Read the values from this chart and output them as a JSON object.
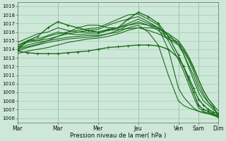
{
  "bg_color": "#cde8d8",
  "grid_color": "#98c4a8",
  "line_color": "#1a6b1a",
  "ylim": [
    1005.5,
    1019.5
  ],
  "yticks": [
    1006,
    1007,
    1008,
    1009,
    1010,
    1011,
    1012,
    1013,
    1014,
    1015,
    1016,
    1017,
    1018,
    1019
  ],
  "xlabel": "Pression niveau de la mer( hPa )",
  "xlim": [
    0,
    240
  ],
  "xtick_positions": [
    0,
    48,
    96,
    144,
    192,
    216,
    240
  ],
  "xtick_labels": [
    "Mar",
    "Mar",
    "Mer",
    "Jeu",
    "Ven",
    "Sam",
    "Dim"
  ],
  "vlines": [
    48,
    96,
    144,
    192,
    216
  ],
  "lines": [
    {
      "x": [
        0,
        12,
        24,
        36,
        48,
        60,
        72,
        84,
        96,
        108,
        120,
        132,
        144,
        156,
        168,
        180,
        192,
        198,
        204,
        210,
        216,
        222,
        228,
        234,
        240
      ],
      "y": [
        1014.0,
        1015.0,
        1015.5,
        1016.5,
        1017.2,
        1016.8,
        1016.5,
        1016.2,
        1016.0,
        1016.3,
        1016.5,
        1017.5,
        1018.3,
        1017.8,
        1017.0,
        1015.5,
        1013.3,
        1012.0,
        1010.5,
        1009.0,
        1007.5,
        1007.0,
        1006.8,
        1006.5,
        1006.2
      ],
      "marker": "+",
      "lw": 1.0
    },
    {
      "x": [
        0,
        12,
        24,
        36,
        48,
        60,
        72,
        84,
        96,
        108,
        120,
        132,
        144,
        156,
        168,
        180,
        192,
        198,
        204,
        210,
        216,
        222,
        228,
        234,
        240
      ],
      "y": [
        1014.2,
        1014.8,
        1015.0,
        1015.5,
        1015.8,
        1016.0,
        1016.2,
        1016.4,
        1016.5,
        1017.0,
        1017.5,
        1018.0,
        1018.1,
        1017.5,
        1016.8,
        1015.0,
        1012.8,
        1011.5,
        1010.0,
        1008.5,
        1007.2,
        1006.8,
        1006.5,
        1006.3,
        1006.1
      ],
      "marker": null,
      "lw": 0.8
    },
    {
      "x": [
        0,
        12,
        24,
        36,
        48,
        60,
        72,
        84,
        96,
        108,
        120,
        132,
        144,
        156,
        168,
        180,
        192,
        198,
        204,
        210,
        216,
        222,
        228,
        234,
        240
      ],
      "y": [
        1014.1,
        1014.5,
        1014.8,
        1015.0,
        1015.5,
        1015.8,
        1016.0,
        1016.2,
        1016.3,
        1016.8,
        1017.2,
        1017.5,
        1017.8,
        1017.2,
        1016.5,
        1014.0,
        1009.5,
        1008.5,
        1007.8,
        1007.2,
        1006.8,
        1006.6,
        1006.5,
        1006.4,
        1006.3
      ],
      "marker": null,
      "lw": 0.8
    },
    {
      "x": [
        0,
        12,
        24,
        36,
        48,
        60,
        72,
        84,
        96,
        108,
        120,
        132,
        144,
        156,
        168,
        180,
        192,
        198,
        204,
        210,
        216,
        222,
        228,
        234,
        240
      ],
      "y": [
        1014.3,
        1015.0,
        1015.2,
        1015.6,
        1016.0,
        1015.8,
        1015.7,
        1015.8,
        1015.8,
        1016.2,
        1016.5,
        1017.0,
        1017.5,
        1017.0,
        1016.5,
        1015.5,
        1014.8,
        1013.5,
        1012.0,
        1010.5,
        1009.0,
        1008.0,
        1007.5,
        1007.0,
        1006.5
      ],
      "marker": null,
      "lw": 0.8
    },
    {
      "x": [
        0,
        12,
        24,
        36,
        48,
        60,
        72,
        84,
        96,
        108,
        120,
        132,
        144,
        156,
        168,
        180,
        192,
        198,
        204,
        210,
        216,
        222,
        228,
        234,
        240
      ],
      "y": [
        1013.8,
        1014.2,
        1014.5,
        1014.8,
        1015.0,
        1015.2,
        1015.3,
        1015.4,
        1015.5,
        1015.8,
        1016.2,
        1016.8,
        1017.2,
        1016.8,
        1016.2,
        1015.2,
        1014.5,
        1013.8,
        1012.8,
        1011.5,
        1010.0,
        1008.8,
        1007.8,
        1007.2,
        1006.4
      ],
      "marker": null,
      "lw": 0.8
    },
    {
      "x": [
        0,
        12,
        24,
        36,
        48,
        60,
        72,
        84,
        96,
        108,
        120,
        132,
        144,
        156,
        168,
        180,
        192,
        198,
        204,
        210,
        216,
        222,
        228,
        234,
        240
      ],
      "y": [
        1014.0,
        1014.3,
        1014.6,
        1015.0,
        1015.2,
        1015.4,
        1015.5,
        1015.6,
        1015.6,
        1015.8,
        1016.0,
        1016.5,
        1016.8,
        1016.0,
        1014.5,
        1011.0,
        1008.0,
        1007.5,
        1007.2,
        1007.0,
        1006.8,
        1006.7,
        1006.6,
        1006.5,
        1006.0
      ],
      "marker": null,
      "lw": 0.8
    },
    {
      "x": [
        0,
        12,
        24,
        36,
        48,
        60,
        72,
        84,
        96,
        108,
        120,
        132,
        144,
        156,
        168,
        180,
        192,
        198,
        204,
        210,
        216,
        222,
        228,
        234,
        240
      ],
      "y": [
        1013.5,
        1013.8,
        1014.0,
        1014.2,
        1014.5,
        1014.8,
        1015.0,
        1015.2,
        1015.3,
        1015.5,
        1015.8,
        1016.2,
        1016.5,
        1016.2,
        1015.8,
        1015.2,
        1014.8,
        1014.0,
        1013.0,
        1011.8,
        1010.5,
        1009.2,
        1008.2,
        1007.5,
        1006.8
      ],
      "marker": null,
      "lw": 0.8
    },
    {
      "x": [
        0,
        12,
        24,
        36,
        48,
        60,
        72,
        84,
        96,
        108,
        120,
        132,
        144,
        156,
        168,
        180,
        192,
        198,
        204,
        210,
        216,
        222,
        228,
        234,
        240
      ],
      "y": [
        1014.5,
        1015.0,
        1015.0,
        1015.2,
        1015.5,
        1016.0,
        1016.5,
        1016.8,
        1016.8,
        1016.5,
        1016.5,
        1016.8,
        1017.0,
        1016.8,
        1016.5,
        1015.8,
        1014.5,
        1013.5,
        1012.2,
        1011.0,
        1009.5,
        1008.5,
        1007.8,
        1007.2,
        1006.2
      ],
      "marker": null,
      "lw": 0.8
    },
    {
      "x": [
        0,
        12,
        24,
        36,
        48,
        60,
        72,
        84,
        96,
        108,
        120,
        132,
        144,
        156,
        168,
        180,
        192,
        198,
        204,
        210,
        216,
        222,
        228,
        234,
        240
      ],
      "y": [
        1014.8,
        1015.3,
        1015.8,
        1016.0,
        1016.5,
        1016.2,
        1016.0,
        1016.0,
        1016.0,
        1016.2,
        1016.3,
        1016.4,
        1016.5,
        1016.5,
        1016.4,
        1015.8,
        1015.0,
        1014.2,
        1013.2,
        1012.0,
        1010.5,
        1009.2,
        1008.2,
        1007.4,
        1006.0
      ],
      "marker": null,
      "lw": 0.8
    },
    {
      "x": [
        0,
        12,
        24,
        36,
        48,
        60,
        72,
        84,
        96,
        108,
        120,
        132,
        144,
        156,
        168,
        180,
        192,
        198,
        204,
        210,
        216,
        222,
        228,
        234,
        240
      ],
      "y": [
        1013.8,
        1013.6,
        1013.5,
        1013.5,
        1013.5,
        1013.6,
        1013.7,
        1013.8,
        1014.0,
        1014.2,
        1014.3,
        1014.4,
        1014.5,
        1014.5,
        1014.4,
        1014.0,
        1013.0,
        1012.0,
        1010.8,
        1009.5,
        1008.2,
        1007.5,
        1007.0,
        1006.7,
        1006.5
      ],
      "marker": "+",
      "lw": 1.0
    }
  ]
}
